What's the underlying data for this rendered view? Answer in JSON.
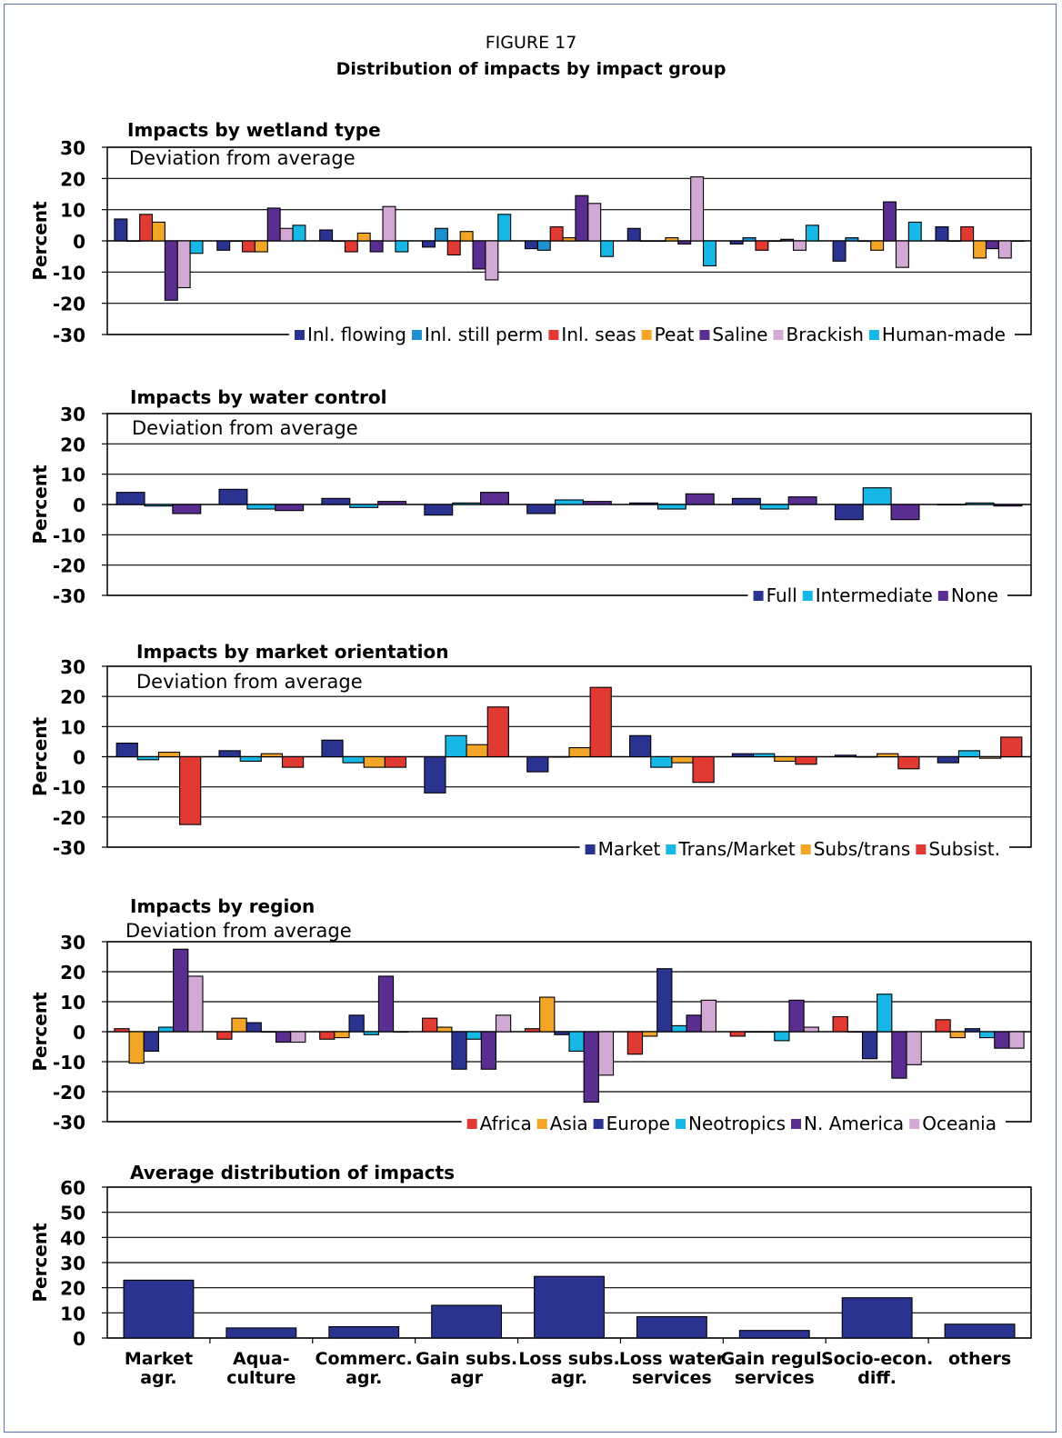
{
  "figure": {
    "label": "FIGURE 17",
    "title": "Distribution of impacts by impact group"
  },
  "colors": {
    "navy": "#2b3390",
    "teal": "#1e8fd0",
    "red": "#e03a33",
    "orange": "#f2a527",
    "purple": "#5a2d91",
    "pink": "#d2a8d5",
    "cyan": "#17b8e6"
  },
  "chart_data": [
    {
      "type": "bar",
      "title": "Impacts by wetland type",
      "subtitle": "Deviation from average",
      "ylabel": "Percent",
      "ylim": [
        -30,
        30
      ],
      "yticks": [
        "-30",
        "-20",
        "-10",
        "0",
        "10",
        "20",
        "30"
      ],
      "grid": true,
      "legend_position": "bottom-right",
      "series": [
        {
          "name": "Inl. flowing",
          "color": "#2b3390",
          "values": [
            7,
            -3,
            3.5,
            -2,
            -2.5,
            4,
            -1,
            -6.5,
            4.5
          ]
        },
        {
          "name": "Inl. still perm",
          "color": "#1e8fd0",
          "values": [
            0,
            0,
            0,
            4,
            -3,
            0,
            1,
            1,
            0
          ]
        },
        {
          "name": "Inl. seas",
          "color": "#e03a33",
          "values": [
            8.5,
            -3.5,
            -3.5,
            -4.5,
            4.5,
            0,
            -3,
            0,
            4.5
          ]
        },
        {
          "name": "Peat",
          "color": "#f2a527",
          "values": [
            6,
            -3.5,
            2.5,
            3,
            1,
            1,
            0,
            -3,
            -5.5
          ]
        },
        {
          "name": "Saline",
          "color": "#5a2d91",
          "values": [
            -19,
            10.5,
            -3.5,
            -9,
            14.5,
            -1,
            0.5,
            12.5,
            -2.5
          ]
        },
        {
          "name": "Brackish",
          "color": "#d2a8d5",
          "values": [
            -15,
            4,
            11,
            -12.5,
            12,
            20.5,
            -3,
            -8.5,
            -5.5
          ]
        },
        {
          "name": "Human-made",
          "color": "#17b8e6",
          "values": [
            -4,
            5,
            -3.5,
            8.5,
            -5,
            -8,
            5,
            6,
            0
          ]
        }
      ]
    },
    {
      "type": "bar",
      "title": "Impacts by water control",
      "subtitle": "Deviation from average",
      "ylabel": "Percent",
      "ylim": [
        -30,
        30
      ],
      "yticks": [
        "-30",
        "-20",
        "-10",
        "0",
        "10",
        "20",
        "30"
      ],
      "grid": true,
      "legend_position": "bottom-right",
      "series": [
        {
          "name": "Full",
          "color": "#2b3390",
          "values": [
            4,
            5,
            2,
            -3.5,
            -3,
            0.5,
            2,
            -5,
            0
          ]
        },
        {
          "name": "Intermediate",
          "color": "#17b8e6",
          "values": [
            -0.5,
            -1.5,
            -1,
            0.5,
            1.5,
            -1.5,
            -1.5,
            5.5,
            0.5
          ]
        },
        {
          "name": "None",
          "color": "#5a2d91",
          "values": [
            -3,
            -2,
            1,
            4,
            1,
            3.5,
            2.5,
            -5,
            -0.5
          ]
        }
      ]
    },
    {
      "type": "bar",
      "title": "Impacts by market orientation",
      "subtitle": "Deviation from average",
      "ylabel": "Percent",
      "ylim": [
        -30,
        30
      ],
      "yticks": [
        "-30",
        "-20",
        "-10",
        "0",
        "10",
        "20",
        "30"
      ],
      "grid": true,
      "legend_position": "bottom-right",
      "series": [
        {
          "name": "Market",
          "color": "#2b3390",
          "values": [
            4.5,
            2,
            5.5,
            -12,
            -5,
            7,
            1,
            0.5,
            -2
          ]
        },
        {
          "name": "Trans/Market",
          "color": "#17b8e6",
          "values": [
            -1,
            -1.5,
            -2,
            7,
            0,
            -3.5,
            1,
            0,
            2
          ]
        },
        {
          "name": "Subs/trans",
          "color": "#f2a527",
          "values": [
            1.5,
            1,
            -3.5,
            4,
            3,
            -2,
            -1.5,
            1,
            -0.5
          ]
        },
        {
          "name": "Subsist.",
          "color": "#e03a33",
          "values": [
            -22.5,
            -3.5,
            -3.5,
            16.5,
            23,
            -8.5,
            -2.5,
            -4,
            6.5
          ]
        }
      ]
    },
    {
      "type": "bar",
      "title": "Impacts by region",
      "subtitle": "Deviation from average",
      "ylabel": "Percent",
      "ylim": [
        -30,
        30
      ],
      "yticks": [
        "-30",
        "-20",
        "-10",
        "0",
        "10",
        "20",
        "30"
      ],
      "grid": true,
      "legend_position": "bottom-right",
      "series": [
        {
          "name": "Africa",
          "color": "#e03a33",
          "values": [
            1,
            -2.5,
            -2.5,
            4.5,
            1,
            -7.5,
            -1.5,
            5,
            4
          ]
        },
        {
          "name": "Asia",
          "color": "#f2a527",
          "values": [
            -10.5,
            4.5,
            -2,
            1.5,
            11.5,
            -1.5,
            0,
            0,
            -2
          ]
        },
        {
          "name": "Europe",
          "color": "#2b3390",
          "values": [
            -6.5,
            3,
            5.5,
            -12.5,
            -1,
            21,
            0,
            -9,
            1
          ]
        },
        {
          "name": "Neotropics",
          "color": "#17b8e6",
          "values": [
            1.5,
            0,
            -1,
            -2.5,
            -6.5,
            2,
            -3,
            12.5,
            -2
          ]
        },
        {
          "name": "N. America",
          "color": "#5a2d91",
          "values": [
            27.5,
            -3.5,
            18.5,
            -12.5,
            -23.5,
            5.5,
            10.5,
            -15.5,
            -5.5
          ]
        },
        {
          "name": "Oceania",
          "color": "#d2a8d5",
          "values": [
            18.5,
            -3.5,
            0,
            5.5,
            -14.5,
            10.5,
            1.5,
            -11,
            -5.5
          ]
        }
      ]
    },
    {
      "type": "bar",
      "title": "Average distribution of impacts",
      "ylabel": "Percent",
      "ylim": [
        0,
        60
      ],
      "yticks": [
        "0",
        "10",
        "20",
        "30",
        "40",
        "50",
        "60"
      ],
      "grid": true,
      "categories": [
        [
          "Market",
          "agr."
        ],
        [
          "Aqua-",
          "culture"
        ],
        [
          "Commerc.",
          "agr."
        ],
        [
          "Gain subs.",
          "agr"
        ],
        [
          "Loss subs.",
          "agr."
        ],
        [
          "Loss water",
          "services"
        ],
        [
          "Gain regul.",
          "services"
        ],
        [
          "Socio-econ.",
          "diff."
        ],
        [
          "others"
        ]
      ],
      "series": [
        {
          "color": "#2b3390",
          "values": [
            23,
            4,
            4.5,
            13,
            24.5,
            8.5,
            3,
            16,
            5.5
          ]
        }
      ]
    }
  ]
}
